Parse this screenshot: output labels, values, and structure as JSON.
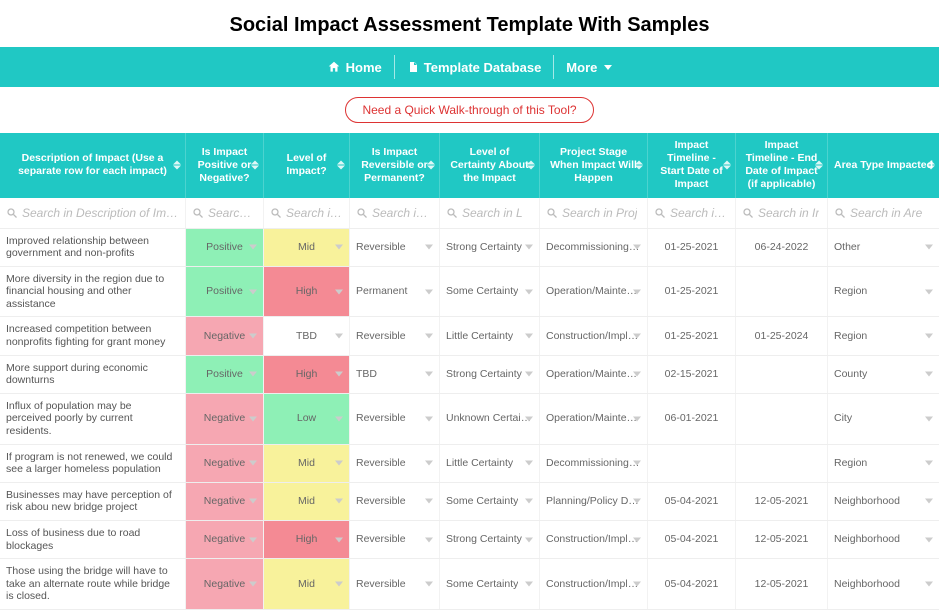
{
  "title": "Social Impact Assessment Template With Samples",
  "nav": {
    "home": "Home",
    "db": "Template Database",
    "more": "More"
  },
  "walkthrough": "Need a Quick Walk-through of this Tool?",
  "columns": [
    "Description of Impact (Use a separate row for each impact)",
    "Is Impact Positive or Negative?",
    "Level of Impact?",
    "Is Impact Reversible or Permanent?",
    "Level of Certainty About the Impact",
    "Project Stage When Impact Will Happen",
    "Impact Timeline - Start Date of Impact",
    "Impact Timeline - End Date of Impact (if applicable)",
    "Area Type Impacted"
  ],
  "filters": [
    "Search in Description of Impa",
    "Search in Is",
    "Search in L",
    "Search in Is",
    "Search in L",
    "Search in Proj",
    "Search in Ir",
    "Search in Ir",
    "Search in Are"
  ],
  "impactClass": {
    "Positive": "badge-positive",
    "Negative": "badge-negative"
  },
  "levelClass": {
    "Mid": "lvl-mid",
    "High": "lvl-high",
    "Low": "lvl-low",
    "TBD": "lvl-tbd"
  },
  "rows": [
    {
      "desc": "Improved relationship between government and non-profits",
      "pn": "Positive",
      "level": "Mid",
      "rev": "Reversible",
      "cert": "Strong Certainty",
      "stage": "Decommissioning/Ab...",
      "start": "01-25-2021",
      "end": "06-24-2022",
      "area": "Other"
    },
    {
      "desc": "More diversity in the region due to financial housing and other assistance",
      "pn": "Positive",
      "level": "High",
      "rev": "Permanent",
      "cert": "Some Certainty",
      "stage": "Operation/Maintena...",
      "start": "01-25-2021",
      "end": "",
      "area": "Region"
    },
    {
      "desc": "Increased competition between nonprofits fighting for grant money",
      "pn": "Negative",
      "level": "TBD",
      "rev": "Reversible",
      "cert": "Little Certainty",
      "stage": "Construction/Implem...",
      "start": "01-25-2021",
      "end": "01-25-2024",
      "area": "Region"
    },
    {
      "desc": "More support during economic downturns",
      "pn": "Positive",
      "level": "High",
      "rev": "TBD",
      "cert": "Strong Certainty",
      "stage": "Operation/Maintena...",
      "start": "02-15-2021",
      "end": "",
      "area": "County"
    },
    {
      "desc": "Influx of population may be perceived poorly by current residents.",
      "pn": "Negative",
      "level": "Low",
      "rev": "Reversible",
      "cert": "Unknown Certainty",
      "stage": "Operation/Maintena...",
      "start": "06-01-2021",
      "end": "",
      "area": "City"
    },
    {
      "desc": "If program is not renewed, we could see a larger homeless population",
      "pn": "Negative",
      "level": "Mid",
      "rev": "Reversible",
      "cert": "Little Certainty",
      "stage": "Decommissioning/Ab...",
      "start": "",
      "end": "",
      "area": "Region"
    },
    {
      "desc": "Businesses may have perception of risk abou new bridge project",
      "pn": "Negative",
      "level": "Mid",
      "rev": "Reversible",
      "cert": "Some Certainty",
      "stage": "Planning/Policy Development",
      "start": "05-04-2021",
      "end": "12-05-2021",
      "area": "Neighborhood"
    },
    {
      "desc": "Loss of business due to road blockages",
      "pn": "Negative",
      "level": "High",
      "rev": "Reversible",
      "cert": "Strong Certainty",
      "stage": "Construction/Implem...",
      "start": "05-04-2021",
      "end": "12-05-2021",
      "area": "Neighborhood"
    },
    {
      "desc": "Those using the bridge will have to take an alternate route while bridge is closed.",
      "pn": "Negative",
      "level": "Mid",
      "rev": "Reversible",
      "cert": "Some Certainty",
      "stage": "Construction/Implem...",
      "start": "05-04-2021",
      "end": "12-05-2021",
      "area": "Neighborhood"
    }
  ]
}
